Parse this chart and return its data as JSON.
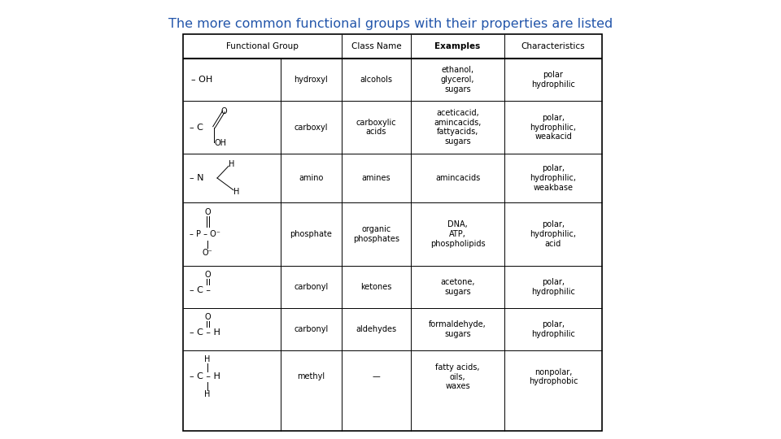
{
  "title": "The more common functional groups with their properties are listed",
  "title_color": "#2255aa",
  "title_fontsize": 11.5,
  "background_color": "#ffffff",
  "header_fontsize": 7.5,
  "cell_fontsize": 7,
  "struct_fontsize": 7,
  "rows": [
    {
      "class_name": "alcohols",
      "examples": "ethanol,\nglycerol,\nsugars",
      "characteristics": "polar\nhydrophilic",
      "row_type": "hydroxyl",
      "struct_label": "hydroxyl"
    },
    {
      "class_name": "carboxylic\nacids",
      "examples": "aceticacid,\namincacids,\nfattyacids,\nsugars",
      "characteristics": "polar,\nhydrophilic,\nweakacid",
      "row_type": "carboxyl",
      "struct_label": "carboxyl"
    },
    {
      "class_name": "amines",
      "examples": "amincacids",
      "characteristics": "polar,\nhydrophilic,\nweakbase",
      "row_type": "amino",
      "struct_label": "amino"
    },
    {
      "class_name": "organic\nphosphates",
      "examples": "DNA,\nATP,\nphospholipids",
      "characteristics": "polar,\nhydrophilic,\nacid",
      "row_type": "phosphate",
      "struct_label": "phosphate"
    },
    {
      "class_name": "ketones",
      "examples": "acetone,\nsugars",
      "characteristics": "polar,\nhydrophilic",
      "row_type": "carbonyl_ketone",
      "struct_label": "carbonyl"
    },
    {
      "class_name": "aldehydes",
      "examples": "formaldehyde,\nsugars",
      "characteristics": "polar,\nhydrophilic",
      "row_type": "carbonyl_aldehyde",
      "struct_label": "carbonyl"
    },
    {
      "class_name": "—",
      "examples": "fatty acids,\noils,\nwaxes",
      "characteristics": "nonpolar,\nhydrophobic",
      "row_type": "methyl",
      "struct_label": "methyl"
    }
  ]
}
